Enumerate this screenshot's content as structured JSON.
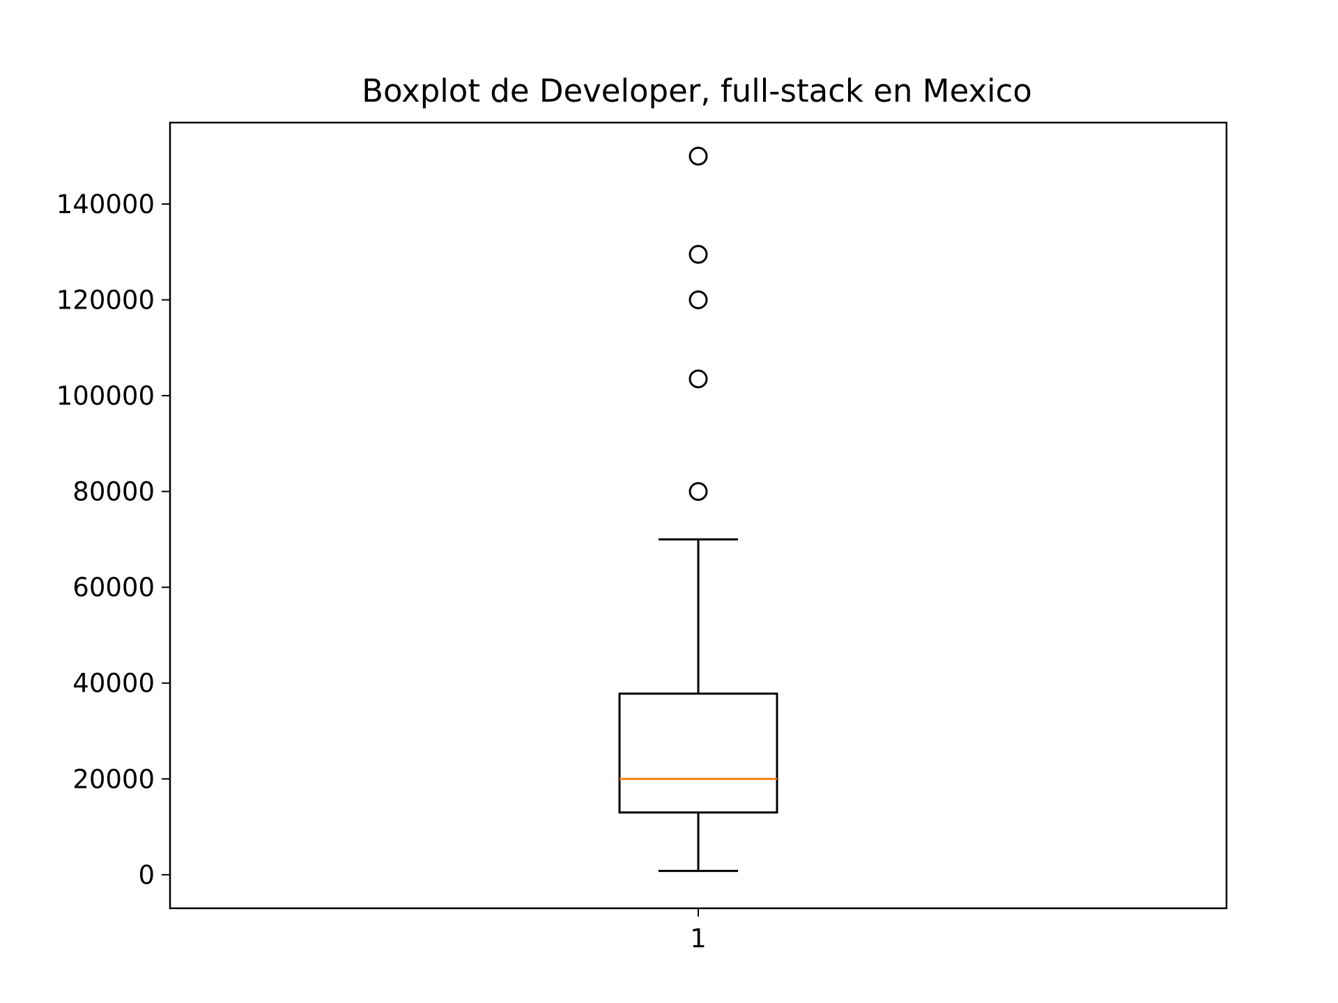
{
  "chart_data": {
    "type": "box",
    "title": "Boxplot de Developer, full-stack en Mexico",
    "xlabel": "",
    "ylabel": "",
    "categories": [
      "1"
    ],
    "ylim": [
      -7000,
      157000
    ],
    "yticks": [
      0,
      20000,
      40000,
      60000,
      80000,
      100000,
      120000,
      140000
    ],
    "ytick_labels": [
      "0",
      "20000",
      "40000",
      "60000",
      "80000",
      "100000",
      "120000",
      "140000"
    ],
    "grid": false,
    "boxes": [
      {
        "category": "1",
        "whisker_low": 800,
        "q1": 13000,
        "median": 20000,
        "q3": 37800,
        "whisker_high": 70000,
        "outliers": [
          80000,
          103500,
          120000,
          129500,
          150000
        ]
      }
    ],
    "colors": {
      "box": "#000000",
      "median": "#ff7f0e",
      "outlier": "#000000",
      "axes": "#000000"
    }
  }
}
